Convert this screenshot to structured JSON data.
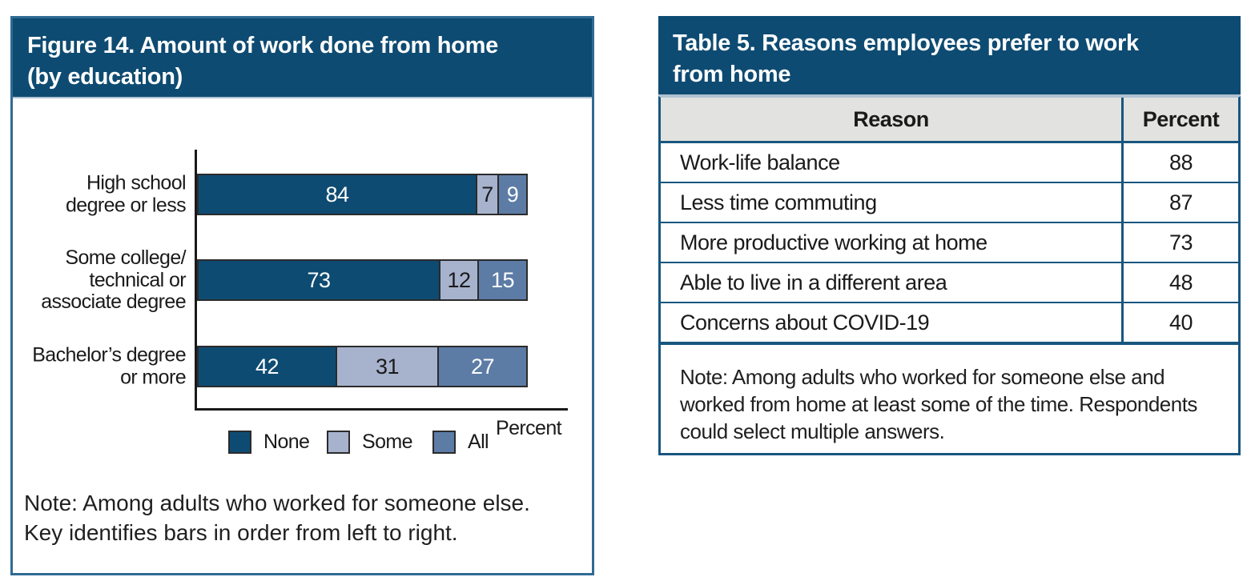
{
  "chart_data": [
    {
      "type": "bar",
      "orientation": "horizontal",
      "stacked": true,
      "title": "Figure 14. Amount of work done from home (by education)",
      "categories": [
        "High school\ndegree or less",
        "Some college/\ntechnical or\nassociate degree",
        "Bachelor’s degree\nor more"
      ],
      "series": [
        {
          "name": "None",
          "values": [
            84,
            73,
            42
          ],
          "color": "#0E4B72",
          "label_color": "#FFFFFF"
        },
        {
          "name": "Some",
          "values": [
            7,
            12,
            31
          ],
          "color": "#A7B3CD",
          "label_color": "#1A1A1A"
        },
        {
          "name": "All",
          "values": [
            9,
            15,
            27
          ],
          "color": "#5C7CA6",
          "label_color": "#FFFFFF"
        }
      ],
      "xlabel": "Percent",
      "xlim": [
        0,
        100
      ],
      "grid": false,
      "legend_position": "bottom",
      "note": "Note: Among adults who worked for someone else. Key identifies bars in order from left to right."
    },
    {
      "type": "table",
      "title": "Table 5. Reasons employees prefer to work from home",
      "columns": [
        "Reason",
        "Percent"
      ],
      "rows": [
        [
          "Work-life balance",
          88
        ],
        [
          "Less time commuting",
          87
        ],
        [
          "More productive working at home",
          73
        ],
        [
          "Able to live in a different area",
          48
        ],
        [
          "Concerns about COVID-19",
          40
        ]
      ],
      "note": "Note: Among adults who worked for someone else and worked from home at least some of the time. Respondents could select multiple answers."
    }
  ],
  "figure_panel": {
    "title": "Figure 14. Amount of work done from home\n(by education)",
    "axis_label": "Percent",
    "note": "Note: Among adults who worked for someone else.\nKey identifies bars in order from left to right.",
    "header_bg": "#0E4B72"
  },
  "table_panel": {
    "title": "Table 5. Reasons employees prefer to work\nfrom home",
    "note": "Note: Among adults who worked for someone else and worked from home at least some of the time. Respondents could select multiple answers.",
    "header_bg": "#0E4B72",
    "border_color": "#17567E",
    "header_row_bg": "#E2E2E0"
  }
}
